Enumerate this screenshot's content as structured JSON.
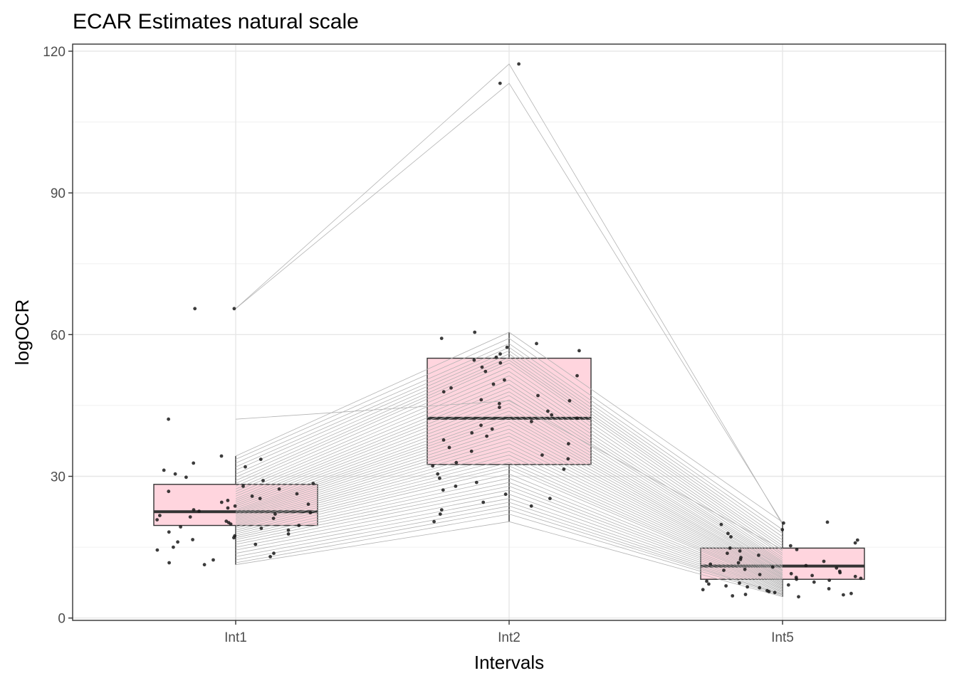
{
  "chart_data": {
    "type": "boxplot",
    "title": "ECAR Estimates natural scale",
    "xlabel": "Intervals",
    "ylabel": "logOCR",
    "categories": [
      "Int1",
      "Int2",
      "Int5"
    ],
    "ylim": [
      -0.5,
      121.5
    ],
    "yticks": [
      0,
      30,
      60,
      90,
      120
    ],
    "grid": true,
    "theme": "bw",
    "box_fill": "#FFD5DE",
    "box_stroke": "#333333",
    "line_color": "#b3b3b3",
    "point_color": "#1a1a1a",
    "boxes": [
      {
        "category": "Int1",
        "q1": 19.6,
        "median": 22.5,
        "q3": 28.3,
        "whisker_low": 11.3,
        "whisker_high": 34.3
      },
      {
        "category": "Int2",
        "q1": 32.5,
        "median": 42.3,
        "q3": 55.0,
        "whisker_low": 20.4,
        "whisker_high": 60.5
      },
      {
        "category": "Int5",
        "q1": 8.2,
        "median": 11.0,
        "q3": 14.8,
        "whisker_low": 4.5,
        "whisker_high": 20.3
      }
    ],
    "outliers": [
      {
        "category": "Int1",
        "value": 65.5
      },
      {
        "category": "Int1",
        "value": 42.1
      },
      {
        "category": "Int2",
        "value": 117.3
      },
      {
        "category": "Int2",
        "value": 113.2
      }
    ],
    "paired_series": [
      [
        65.5,
        117.3,
        19.8
      ],
      [
        65.5,
        113.2,
        20.1
      ],
      [
        42.1,
        46.0,
        14.5
      ],
      [
        34.3,
        60.5,
        20.3
      ],
      [
        33.6,
        59.2,
        18.7
      ],
      [
        32.8,
        58.1,
        17.9
      ],
      [
        32.0,
        57.3,
        17.2
      ],
      [
        31.3,
        56.6,
        16.5
      ],
      [
        30.5,
        55.9,
        15.9
      ],
      [
        29.8,
        55.2,
        15.3
      ],
      [
        29.1,
        54.6,
        14.8
      ],
      [
        28.5,
        54.0,
        14.2
      ],
      [
        27.9,
        53.1,
        13.7
      ],
      [
        27.3,
        52.2,
        13.3
      ],
      [
        26.8,
        51.3,
        12.8
      ],
      [
        26.3,
        50.4,
        12.4
      ],
      [
        25.8,
        49.5,
        12.0
      ],
      [
        25.3,
        48.7,
        11.7
      ],
      [
        24.9,
        47.9,
        11.4
      ],
      [
        24.5,
        47.1,
        11.1
      ],
      [
        24.1,
        46.2,
        10.8
      ],
      [
        23.7,
        45.4,
        10.6
      ],
      [
        23.3,
        44.6,
        10.3
      ],
      [
        22.9,
        43.8,
        10.1
      ],
      [
        22.6,
        43.0,
        9.9
      ],
      [
        22.3,
        42.3,
        9.6
      ],
      [
        22.0,
        41.6,
        9.4
      ],
      [
        21.7,
        40.8,
        9.2
      ],
      [
        21.4,
        40.0,
        9.0
      ],
      [
        21.1,
        39.2,
        8.8
      ],
      [
        20.8,
        38.5,
        8.6
      ],
      [
        20.5,
        37.7,
        8.4
      ],
      [
        20.2,
        36.9,
        8.2
      ],
      [
        19.9,
        36.1,
        8.0
      ],
      [
        19.6,
        35.3,
        7.8
      ],
      [
        19.3,
        34.5,
        7.6
      ],
      [
        19.0,
        33.7,
        7.4
      ],
      [
        18.6,
        32.9,
        7.2
      ],
      [
        18.2,
        32.2,
        7.0
      ],
      [
        17.8,
        31.5,
        6.8
      ],
      [
        17.4,
        30.5,
        6.6
      ],
      [
        17.0,
        29.6,
        6.4
      ],
      [
        16.6,
        28.7,
        6.2
      ],
      [
        16.1,
        27.9,
        6.0
      ],
      [
        15.6,
        27.1,
        5.8
      ],
      [
        15.0,
        26.2,
        5.6
      ],
      [
        14.4,
        25.3,
        5.4
      ],
      [
        13.7,
        24.5,
        5.2
      ],
      [
        13.0,
        23.7,
        5.0
      ],
      [
        12.3,
        22.9,
        4.9
      ],
      [
        11.7,
        22.0,
        4.7
      ],
      [
        11.3,
        20.4,
        4.5
      ]
    ]
  }
}
